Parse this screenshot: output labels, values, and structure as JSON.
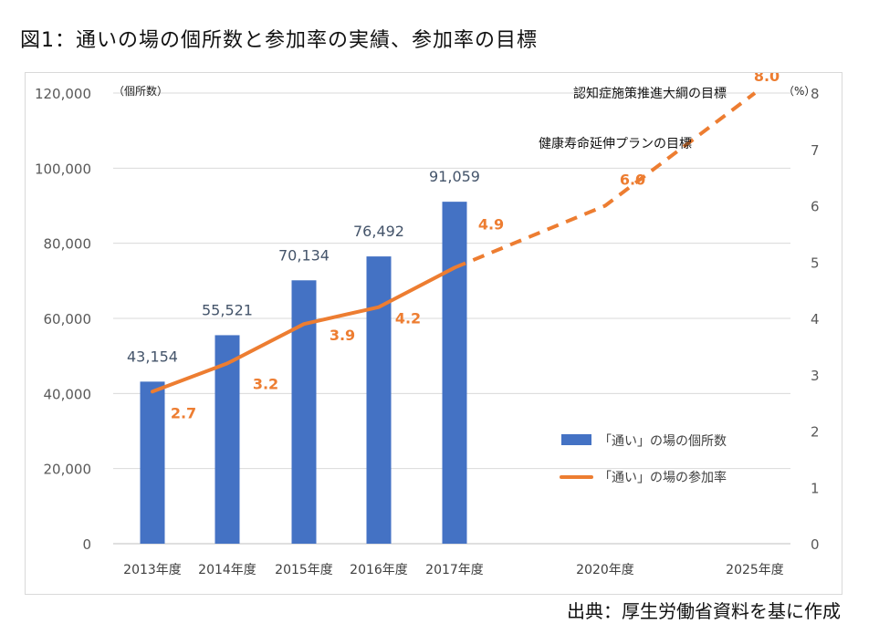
{
  "figure": {
    "title": "図1：通いの場の個所数と参加率の実績、参加率の目標",
    "source": "出典：厚生労働省資料を基に作成"
  },
  "chart_data": {
    "type": "bar+line",
    "categories": [
      "2013年度",
      "2014年度",
      "2015年度",
      "2016年度",
      "2017年度",
      "2020年度",
      "2025年度"
    ],
    "y_left": {
      "unit_label": "（個所数）",
      "range": [
        0,
        120000
      ],
      "ticks": [
        "0",
        "20,000",
        "40,000",
        "60,000",
        "80,000",
        "100,000",
        "120,000"
      ]
    },
    "y_right": {
      "unit_label": "（%）",
      "range": [
        0,
        8
      ],
      "ticks": [
        "0",
        "1",
        "2",
        "3",
        "4",
        "5",
        "6",
        "7",
        "8"
      ]
    },
    "grid": true,
    "series": [
      {
        "name": "「通い」の場の個所数",
        "type": "bar",
        "axis": "left",
        "color": "#4472c4",
        "values": [
          43154,
          55521,
          70134,
          76492,
          91059,
          null,
          null
        ],
        "labels": [
          "43,154",
          "55,521",
          "70,134",
          "76,492",
          "91,059",
          "",
          ""
        ]
      },
      {
        "name": "「通い」の場の参加率",
        "type": "line",
        "axis": "right",
        "color": "#ed7d31",
        "values": [
          2.7,
          3.2,
          3.9,
          4.2,
          4.9,
          6.0,
          8.0
        ],
        "labels": [
          "2.7",
          "3.2",
          "3.9",
          "4.2",
          "4.9",
          "6.0",
          "8.0"
        ],
        "dashed_from_index": 4
      }
    ],
    "annotations": [
      {
        "text": "健康寿命延伸プランの目標",
        "category_index": 5
      },
      {
        "text": "認知症施策推進大綱の目標",
        "category_index": 6
      }
    ],
    "legend_position": "right"
  }
}
